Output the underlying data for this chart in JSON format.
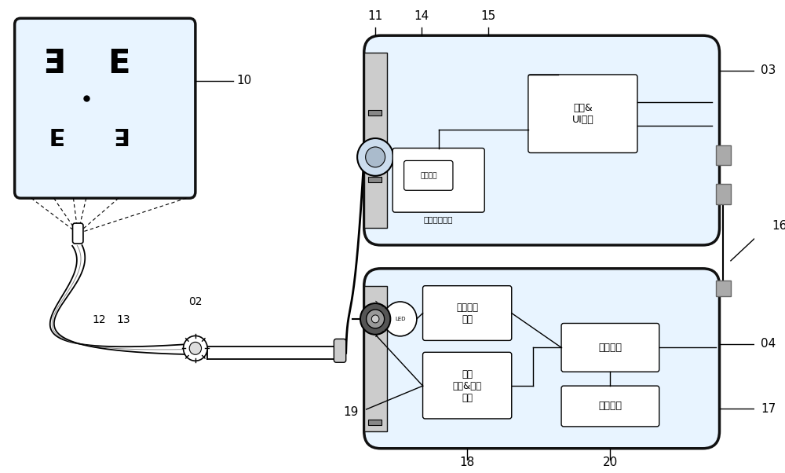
{
  "bg_color": "#ffffff",
  "device_bg": "#e8f4ff",
  "chinese": {
    "guang_yuan_qu_dong": "光源驱动\n单元",
    "liang_du_tiao_jie": "亮度\n调节&开关\n单元",
    "kong_zhi_dan_yuan": "控制单元",
    "cun_chu_mo_kuai": "存储模块",
    "ce_guang_mo_kuai": "测光模块",
    "tu_xiang_chu_li": "图像处理单元",
    "kong_zhi_ui": "控制&\nUI单元"
  }
}
